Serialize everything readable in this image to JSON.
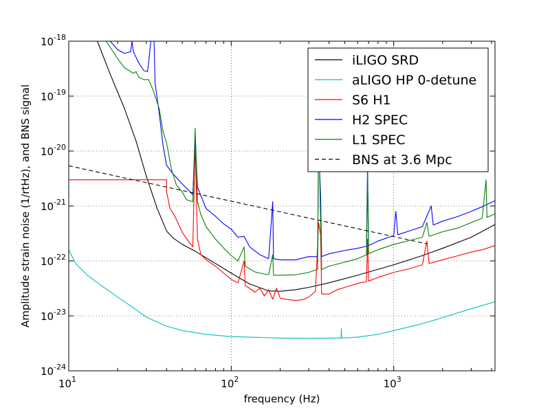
{
  "chart_data": {
    "type": "line",
    "title": "",
    "xlabel": "frequency (Hz)",
    "ylabel": "Amplitude strain noise (1/rtHz), and BNS signal",
    "xscale": "log",
    "yscale": "log",
    "xlim": [
      10,
      4200
    ],
    "ylim": [
      1e-24,
      1e-18
    ],
    "grid": true,
    "legend_position": "top-right",
    "x_ticks": [
      {
        "value": 10,
        "base": "10",
        "exp": "1"
      },
      {
        "value": 100,
        "base": "10",
        "exp": "2"
      },
      {
        "value": 1000,
        "base": "10",
        "exp": "3"
      }
    ],
    "y_ticks": [
      {
        "value": 1e-24,
        "base": "10",
        "exp": "-24"
      },
      {
        "value": 1e-23,
        "base": "10",
        "exp": "-23"
      },
      {
        "value": 1e-22,
        "base": "10",
        "exp": "-22"
      },
      {
        "value": 1e-21,
        "base": "10",
        "exp": "-21"
      },
      {
        "value": 1e-20,
        "base": "10",
        "exp": "-20"
      },
      {
        "value": 1e-19,
        "base": "10",
        "exp": "-19"
      },
      {
        "value": 1e-18,
        "base": "10",
        "exp": "-18"
      }
    ],
    "series": [
      {
        "name": "iLIGO SRD",
        "color": "#000000",
        "dash": "solid",
        "points": [
          [
            15,
            1e-18
          ],
          [
            18,
            2.5e-19
          ],
          [
            22,
            6e-20
          ],
          [
            26,
            1.5e-20
          ],
          [
            30,
            3.5e-21
          ],
          [
            35,
            9e-22
          ],
          [
            40,
            3.5e-22
          ],
          [
            44,
            2.6e-22
          ],
          [
            50,
            2e-22
          ],
          [
            60,
            1.5e-22
          ],
          [
            80,
            9e-23
          ],
          [
            100,
            6e-23
          ],
          [
            130,
            3.8e-23
          ],
          [
            170,
            2.85e-23
          ],
          [
            200,
            2.8e-23
          ],
          [
            250,
            3e-23
          ],
          [
            300,
            3.3e-23
          ],
          [
            400,
            4e-23
          ],
          [
            600,
            5.5e-23
          ],
          [
            1000,
            8.5e-23
          ],
          [
            1500,
            1.25e-22
          ],
          [
            2000,
            1.7e-22
          ],
          [
            3000,
            2.7e-22
          ],
          [
            4200,
            4.6e-22
          ]
        ]
      },
      {
        "name": "aLIGO HP 0-detune",
        "color": "#00bfbf",
        "dash": "solid",
        "points": [
          [
            10,
            1.6e-22
          ],
          [
            11,
            9e-23
          ],
          [
            13,
            5.5e-23
          ],
          [
            16,
            3.5e-23
          ],
          [
            20,
            2.2e-23
          ],
          [
            25,
            1.4e-23
          ],
          [
            30,
            9.5e-24
          ],
          [
            40,
            6.5e-24
          ],
          [
            50,
            5.4e-24
          ],
          [
            70,
            4.6e-24
          ],
          [
            100,
            4.2e-24
          ],
          [
            150,
            4.05e-24
          ],
          [
            200,
            3.95e-24
          ],
          [
            300,
            3.9e-24
          ],
          [
            400,
            3.95e-24
          ],
          [
            474,
            3.95e-24
          ],
          [
            476,
            5.8e-24
          ],
          [
            478,
            3.95e-24
          ],
          [
            600,
            4.1e-24
          ],
          [
            800,
            4.6e-24
          ],
          [
            1000,
            5.4e-24
          ],
          [
            1500,
            7.2e-24
          ],
          [
            2000,
            9.3e-24
          ],
          [
            3000,
            1.35e-23
          ],
          [
            4200,
            1.8e-23
          ]
        ]
      },
      {
        "name": "S6 H1",
        "color": "#ff0000",
        "dash": "solid",
        "points": [
          [
            10,
            3e-21
          ],
          [
            40,
            3e-21
          ],
          [
            40,
            1.8e-21
          ],
          [
            42,
            9e-22
          ],
          [
            45,
            6.5e-22
          ],
          [
            50,
            3.3e-22
          ],
          [
            55,
            2.2e-22
          ],
          [
            58,
            1.8e-22
          ],
          [
            60,
            1.3e-20
          ],
          [
            62,
            2.5e-22
          ],
          [
            65,
            1.3e-22
          ],
          [
            70,
            1.05e-22
          ],
          [
            80,
            8e-23
          ],
          [
            90,
            6e-23
          ],
          [
            100,
            4.6e-23
          ],
          [
            110,
            4e-23
          ],
          [
            120,
            1e-22
          ],
          [
            122,
            3.6e-23
          ],
          [
            140,
            2.7e-23
          ],
          [
            150,
            3.2e-23
          ],
          [
            160,
            2.3e-23
          ],
          [
            170,
            3e-23
          ],
          [
            180,
            2e-23
          ],
          [
            190,
            3.2e-23
          ],
          [
            200,
            2.1e-23
          ],
          [
            220,
            2e-23
          ],
          [
            250,
            1.9e-23
          ],
          [
            280,
            2e-23
          ],
          [
            300,
            2.2e-23
          ],
          [
            330,
            2.8e-23
          ],
          [
            345,
            5e-22
          ],
          [
            355,
            3e-22
          ],
          [
            360,
            2.5e-23
          ],
          [
            400,
            2.5e-23
          ],
          [
            450,
            3e-23
          ],
          [
            500,
            3.3e-23
          ],
          [
            600,
            3.9e-23
          ],
          [
            680,
            4.2e-23
          ],
          [
            690,
            2.5e-22
          ],
          [
            700,
            4.3e-23
          ],
          [
            800,
            5e-23
          ],
          [
            1000,
            6.2e-23
          ],
          [
            1200,
            7e-23
          ],
          [
            1500,
            8.5e-23
          ],
          [
            1600,
            2.3e-22
          ],
          [
            1650,
            9e-23
          ],
          [
            2000,
            1.05e-22
          ],
          [
            2500,
            1.25e-22
          ],
          [
            3000,
            1.45e-22
          ],
          [
            3500,
            1.6e-22
          ],
          [
            4200,
            1.9e-22
          ]
        ]
      },
      {
        "name": "H2 SPEC",
        "color": "#0000ff",
        "dash": "solid",
        "points": [
          [
            15,
            1e-18
          ],
          [
            18,
            1e-18
          ],
          [
            20,
            7e-19
          ],
          [
            22,
            6e-19
          ],
          [
            24,
            6.4e-19
          ],
          [
            24.5,
            1e-18
          ],
          [
            25,
            6.4e-19
          ],
          [
            27,
            4e-19
          ],
          [
            29,
            2.9e-19
          ],
          [
            30.5,
            2.8e-19
          ],
          [
            31,
            4e-19
          ],
          [
            32,
            1e-18
          ],
          [
            33.5,
            1e-18
          ],
          [
            34,
            1.7e-19
          ],
          [
            36,
            5e-20
          ],
          [
            38,
            1.3e-20
          ],
          [
            40,
            5.5e-21
          ],
          [
            44,
            3.8e-21
          ],
          [
            50,
            2.5e-21
          ],
          [
            55,
            1.9e-21
          ],
          [
            58,
            1.6e-21
          ],
          [
            60,
            1.7e-20
          ],
          [
            62,
            2.2e-21
          ],
          [
            70,
            9e-22
          ],
          [
            80,
            6.5e-22
          ],
          [
            90,
            4.7e-22
          ],
          [
            100,
            3.8e-22
          ],
          [
            110,
            2.7e-22
          ],
          [
            120,
            2.8e-22
          ],
          [
            130,
            1.8e-22
          ],
          [
            150,
            1.3e-22
          ],
          [
            170,
            1.1e-22
          ],
          [
            180,
            1.2e-21
          ],
          [
            182,
            1.1e-22
          ],
          [
            200,
            1.05e-22
          ],
          [
            250,
            1.05e-22
          ],
          [
            300,
            1.2e-22
          ],
          [
            340,
            1.2e-22
          ],
          [
            345,
            1.3e-20
          ],
          [
            355,
            1.5e-21
          ],
          [
            360,
            1.2e-22
          ],
          [
            400,
            1.35e-22
          ],
          [
            500,
            1.55e-22
          ],
          [
            600,
            1.7e-22
          ],
          [
            680,
            1.85e-22
          ],
          [
            690,
            6e-21
          ],
          [
            700,
            1.9e-22
          ],
          [
            800,
            2.3e-22
          ],
          [
            1000,
            2.9e-22
          ],
          [
            1030,
            8e-22
          ],
          [
            1060,
            3e-22
          ],
          [
            1500,
            4.2e-22
          ],
          [
            1700,
            1e-21
          ],
          [
            1750,
            4.5e-22
          ],
          [
            2000,
            5.3e-22
          ],
          [
            2500,
            6.5e-22
          ],
          [
            3000,
            8e-22
          ],
          [
            3500,
            9.7e-22
          ],
          [
            4200,
            1.25e-21
          ]
        ]
      },
      {
        "name": "L1 SPEC",
        "color": "#008000",
        "dash": "solid",
        "points": [
          [
            17,
            1e-18
          ],
          [
            20,
            4.8e-19
          ],
          [
            22,
            3.3e-19
          ],
          [
            25,
            2.6e-19
          ],
          [
            26,
            2.8e-19
          ],
          [
            27,
            2.2e-19
          ],
          [
            29,
            2e-19
          ],
          [
            31,
            2e-19
          ],
          [
            33,
            1.3e-19
          ],
          [
            36,
            6e-20
          ],
          [
            38,
            2.3e-20
          ],
          [
            40,
            1.4e-20
          ],
          [
            43,
            4.5e-21
          ],
          [
            46,
            2.4e-21
          ],
          [
            50,
            1.8e-21
          ],
          [
            53,
            1.3e-21
          ],
          [
            58,
            1.2e-21
          ],
          [
            60,
            2.6e-20
          ],
          [
            62,
            1.2e-21
          ],
          [
            65,
            7e-22
          ],
          [
            70,
            4.2e-22
          ],
          [
            80,
            2.5e-22
          ],
          [
            90,
            1.7e-22
          ],
          [
            100,
            1.25e-22
          ],
          [
            110,
            1e-22
          ],
          [
            120,
            1.8e-22
          ],
          [
            122,
            8e-23
          ],
          [
            140,
            6.3e-23
          ],
          [
            150,
            6e-23
          ],
          [
            170,
            5.6e-23
          ],
          [
            180,
            1.3e-22
          ],
          [
            182,
            5.5e-23
          ],
          [
            200,
            5.5e-23
          ],
          [
            250,
            5.6e-23
          ],
          [
            300,
            6.2e-23
          ],
          [
            340,
            7e-23
          ],
          [
            345,
            3e-20
          ],
          [
            355,
            5e-22
          ],
          [
            360,
            7e-23
          ],
          [
            400,
            8e-23
          ],
          [
            500,
            9.5e-23
          ],
          [
            600,
            1.1e-22
          ],
          [
            680,
            1.3e-22
          ],
          [
            690,
            4e-21
          ],
          [
            700,
            1.35e-22
          ],
          [
            800,
            1.6e-22
          ],
          [
            1000,
            2e-22
          ],
          [
            1500,
            2.7e-22
          ],
          [
            1600,
            5e-22
          ],
          [
            1650,
            2.8e-22
          ],
          [
            2000,
            3.4e-22
          ],
          [
            2500,
            4e-22
          ],
          [
            3000,
            5e-22
          ],
          [
            3500,
            6e-22
          ],
          [
            3700,
            3e-21
          ],
          [
            3750,
            6.2e-22
          ],
          [
            4200,
            7.2e-22
          ]
        ]
      },
      {
        "name": "BNS at 3.6 Mpc",
        "color": "#000000",
        "dash": "dashed",
        "points": [
          [
            10,
            5.4e-21
          ],
          [
            1600,
            2.05e-22
          ]
        ]
      }
    ]
  }
}
